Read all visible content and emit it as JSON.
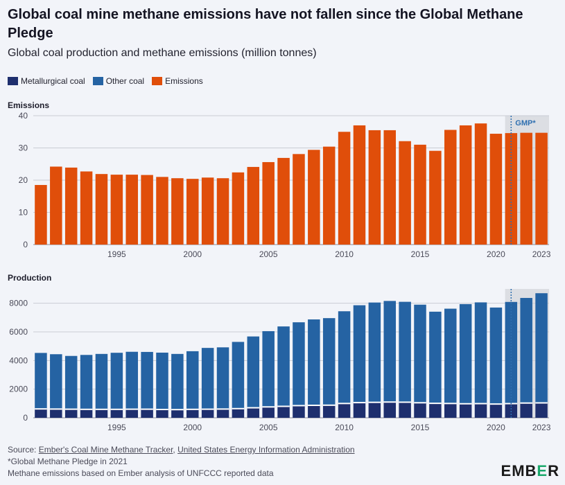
{
  "header": {
    "title": "Global coal mine methane emissions have not fallen since the Global Methane Pledge",
    "subtitle": "Global coal production and methane emissions (million tonnes)"
  },
  "legend": [
    {
      "label": "Metallurgical coal",
      "color": "#1e2f6e"
    },
    {
      "label": "Other coal",
      "color": "#2563a3"
    },
    {
      "label": "Emissions",
      "color": "#e04e0a"
    }
  ],
  "annotation": {
    "label": "GMP*",
    "year": 2021
  },
  "chart_data": [
    {
      "type": "bar",
      "panel_label": "Emissions",
      "x": [
        1990,
        1991,
        1992,
        1993,
        1994,
        1995,
        1996,
        1997,
        1998,
        1999,
        2000,
        2001,
        2002,
        2003,
        2004,
        2005,
        2006,
        2007,
        2008,
        2009,
        2010,
        2011,
        2012,
        2013,
        2014,
        2015,
        2016,
        2017,
        2018,
        2019,
        2020,
        2021,
        2022,
        2023
      ],
      "x_tick_labels": [
        "1995",
        "2000",
        "2005",
        "2010",
        "2015",
        "2020",
        "2023"
      ],
      "series": [
        {
          "name": "Emissions",
          "color": "#e04e0a",
          "values": [
            18.5,
            24.2,
            23.9,
            22.7,
            21.9,
            21.7,
            21.7,
            21.6,
            21.0,
            20.6,
            20.4,
            20.8,
            20.6,
            22.4,
            24.1,
            25.6,
            26.9,
            28.1,
            29.4,
            30.4,
            35.0,
            37.0,
            35.5,
            35.5,
            32.1,
            31.0,
            29.1,
            35.6,
            37.0,
            37.6,
            34.4,
            34.6,
            34.7,
            34.7
          ]
        }
      ],
      "ylim": [
        0,
        40
      ],
      "y_ticks": [
        0,
        10,
        20,
        30,
        40
      ],
      "grid": true,
      "shaded_region": {
        "from": 2021,
        "to": 2023
      }
    },
    {
      "type": "bar",
      "stacked": true,
      "panel_label": "Production",
      "x": [
        1990,
        1991,
        1992,
        1993,
        1994,
        1995,
        1996,
        1997,
        1998,
        1999,
        2000,
        2001,
        2002,
        2003,
        2004,
        2005,
        2006,
        2007,
        2008,
        2009,
        2010,
        2011,
        2012,
        2013,
        2014,
        2015,
        2016,
        2017,
        2018,
        2019,
        2020,
        2021,
        2022,
        2023
      ],
      "x_tick_labels": [
        "1995",
        "2000",
        "2005",
        "2010",
        "2015",
        "2020",
        "2023"
      ],
      "series": [
        {
          "name": "Metallurgical coal",
          "color": "#1e2f6e",
          "values": [
            620,
            610,
            600,
            590,
            590,
            590,
            600,
            600,
            580,
            570,
            590,
            600,
            610,
            640,
            700,
            760,
            800,
            850,
            870,
            880,
            1000,
            1060,
            1080,
            1100,
            1090,
            1050,
            1010,
            1000,
            980,
            990,
            960,
            990,
            1030,
            1040
          ]
        },
        {
          "name": "Other coal",
          "color": "#2563a3",
          "values": [
            3910,
            3830,
            3720,
            3800,
            3870,
            3950,
            4010,
            4000,
            3970,
            3890,
            4060,
            4280,
            4310,
            4660,
            4980,
            5290,
            5580,
            5820,
            6000,
            6080,
            6440,
            6800,
            6970,
            7060,
            7010,
            6850,
            6400,
            6620,
            6960,
            7070,
            6740,
            7100,
            7340,
            7660
          ]
        }
      ],
      "ylim": [
        0,
        9000
      ],
      "y_ticks": [
        0,
        2000,
        4000,
        6000,
        8000
      ],
      "grid": true,
      "shaded_region": {
        "from": 2021,
        "to": 2023
      }
    }
  ],
  "footer": {
    "source_prefix": "Source: ",
    "source_link_1": "Ember's Coal Mine Methane Tracker",
    "source_sep": ", ",
    "source_link_2": "United States Energy Information Administration",
    "note_1": "*Global Methane Pledge in 2021",
    "note_2": "Methane emissions based on Ember analysis of UNFCCC reported data"
  },
  "logo": {
    "text_a": "EMB",
    "text_b": "E",
    "text_c": "R"
  }
}
